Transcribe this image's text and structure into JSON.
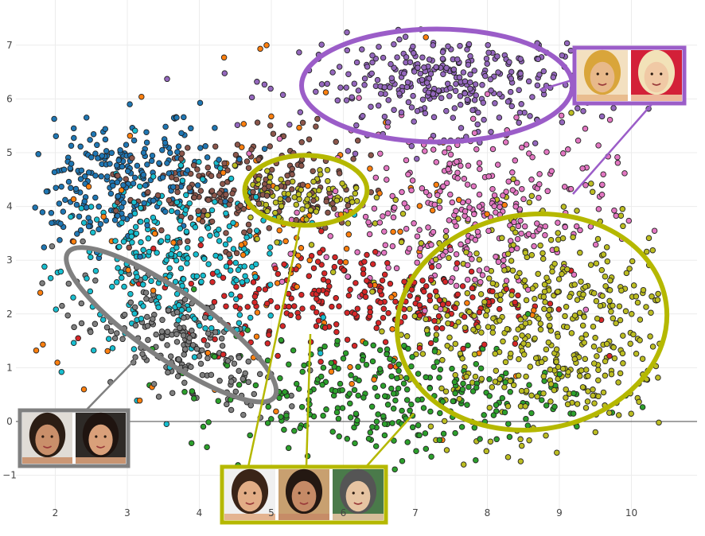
{
  "chart_data": {
    "type": "scatter",
    "title": "",
    "xlabel": "",
    "ylabel": "",
    "xlim": [
      1.1,
      10.9
    ],
    "ylim": [
      -1.4,
      7.6
    ],
    "x_ticks": [
      "2",
      "3",
      "4",
      "5",
      "6",
      "7",
      "8",
      "9",
      "10"
    ],
    "y_ticks": [
      "−1",
      "0",
      "1",
      "2",
      "3",
      "4",
      "5",
      "6",
      "7"
    ],
    "grid": true,
    "series": [
      {
        "color": "#1f77b4",
        "center": [
          2.9,
          4.5
        ],
        "spread": [
          0.75,
          0.55
        ],
        "count": 260,
        "tilt": 0.35
      },
      {
        "color": "#17becf",
        "center": [
          3.7,
          3.0
        ],
        "spread": [
          0.8,
          0.75
        ],
        "count": 280,
        "tilt": 0.1
      },
      {
        "color": "#7f7f7f",
        "center": [
          3.7,
          1.5
        ],
        "spread": [
          0.85,
          0.42
        ],
        "count": 200,
        "tilt": -0.75
      },
      {
        "color": "#8c564b",
        "center": [
          4.6,
          4.3
        ],
        "spread": [
          0.8,
          0.5
        ],
        "count": 220,
        "tilt": 0.25
      },
      {
        "color": "#9467bd",
        "center": [
          7.5,
          6.3
        ],
        "spread": [
          1.05,
          0.45
        ],
        "count": 340,
        "tilt": 0.0
      },
      {
        "color": "#e377c2",
        "center": [
          7.7,
          3.9
        ],
        "spread": [
          1.0,
          0.85
        ],
        "count": 320,
        "tilt": 0.0
      },
      {
        "color": "#d62728",
        "center": [
          6.3,
          2.3
        ],
        "spread": [
          1.2,
          0.5
        ],
        "count": 260,
        "tilt": 0.0
      },
      {
        "color": "#2ca02c",
        "center": [
          6.5,
          0.5
        ],
        "spread": [
          1.3,
          0.55
        ],
        "count": 300,
        "tilt": 0.0
      },
      {
        "color": "#bcbd22",
        "center": [
          8.8,
          1.8
        ],
        "spread": [
          1.0,
          1.1
        ],
        "count": 520,
        "tilt": 0.0
      },
      {
        "color": "#bcbd22",
        "center": [
          5.4,
          4.1
        ],
        "spread": [
          0.45,
          0.3
        ],
        "count": 90,
        "tilt": 0.0
      },
      {
        "color": "#ff7f0e",
        "center": [
          5.6,
          2.8
        ],
        "spread": [
          1.9,
          1.6
        ],
        "count": 110,
        "tilt": 0.0
      }
    ],
    "annotations": [
      {
        "color": "#9b5dc8",
        "cx": 7.3,
        "cy": 6.25,
        "rx": 1.88,
        "ry": 1.05,
        "angle": 0
      },
      {
        "color": "#b5b800",
        "cx": 5.48,
        "cy": 4.3,
        "rx": 0.85,
        "ry": 0.65,
        "angle": 0
      },
      {
        "color": "#b5b800",
        "cx": 8.62,
        "cy": 1.85,
        "rx": 1.88,
        "ry": 2.0,
        "angle": -8
      },
      {
        "color": "#808080",
        "cx": 3.61,
        "cy": 1.8,
        "rx": 1.75,
        "ry": 0.62,
        "angle": 35
      }
    ],
    "callouts": [
      {
        "color": "#9b5dc8",
        "faces": [
          "blonde-woman-face",
          "woman-in-santa-hat-face"
        ]
      },
      {
        "color": "#808080",
        "faces": [
          "smiling-woman-face",
          "dark-haired-woman-face"
        ]
      },
      {
        "color": "#b5b800",
        "faces": [
          "long-haired-woman-face",
          "mustached-man-face",
          "man-in-cap-face"
        ]
      }
    ]
  }
}
